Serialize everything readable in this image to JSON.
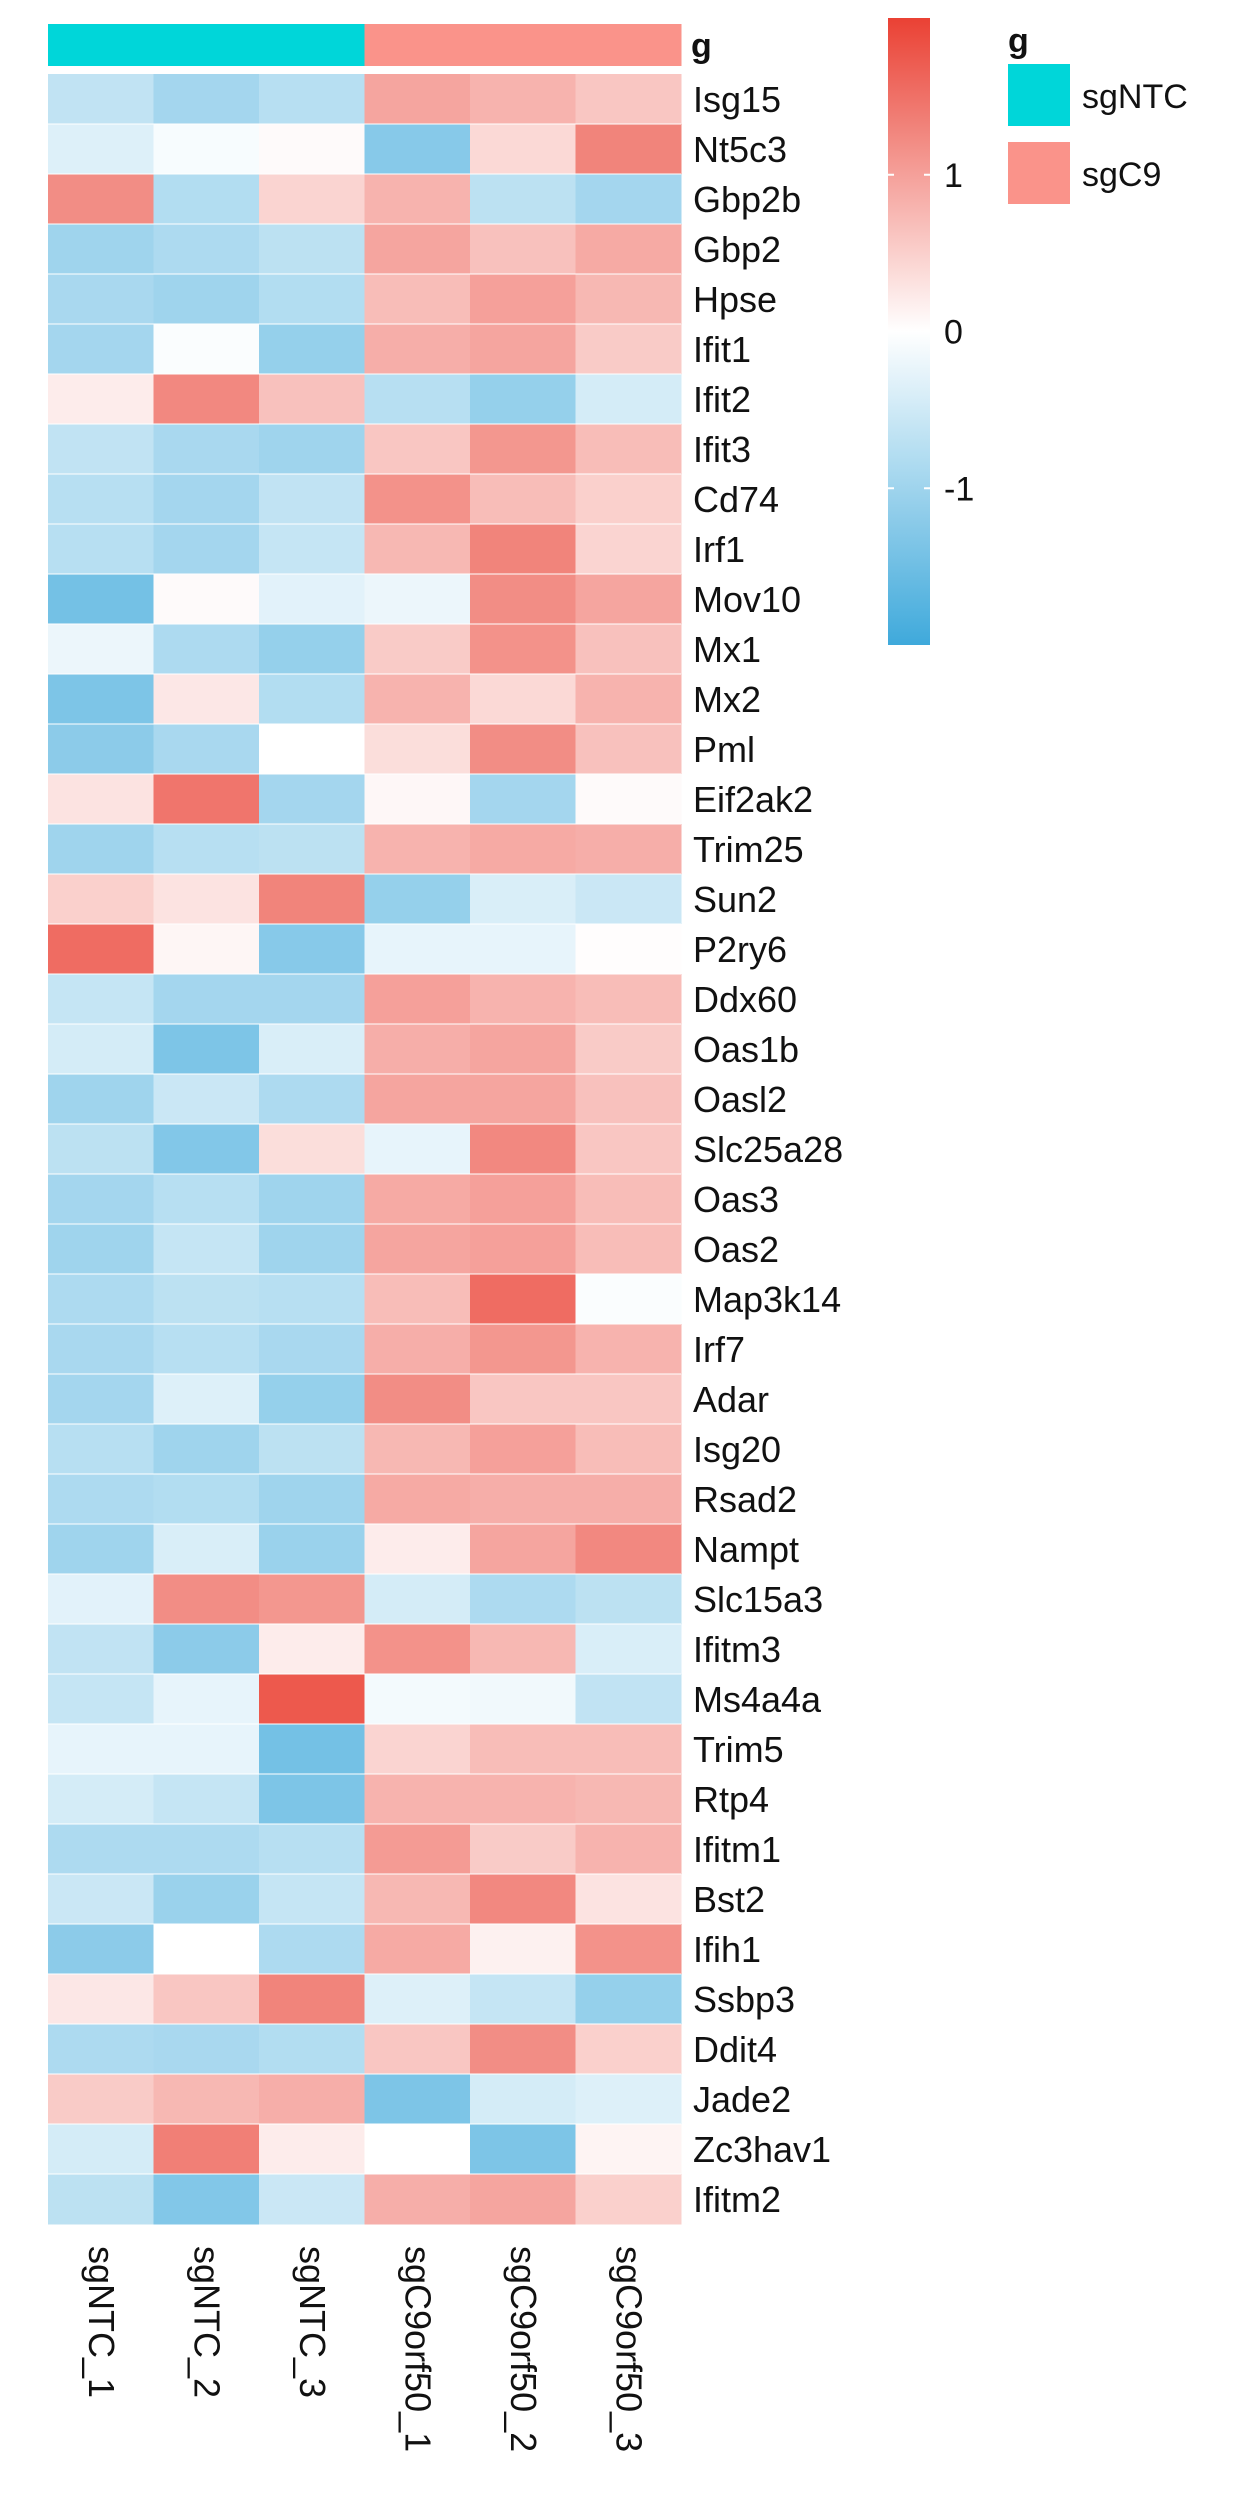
{
  "chart_data": {
    "type": "heatmap",
    "title": "",
    "annotation_label": "g",
    "columns": [
      "sgNTC_1",
      "sgNTC_2",
      "sgNTC_3",
      "sgC9orf50_1",
      "sgC9orf50_2",
      "sgC9orf50_3"
    ],
    "column_groups": [
      "sgNTC",
      "sgNTC",
      "sgNTC",
      "sgC9",
      "sgC9",
      "sgC9"
    ],
    "rows": [
      "Isg15",
      "Nt5c3",
      "Gbp2b",
      "Gbp2",
      "Hpse",
      "Ifit1",
      "Ifit2",
      "Ifit3",
      "Cd74",
      "Irf1",
      "Mov10",
      "Mx1",
      "Mx2",
      "Pml",
      "Eif2ak2",
      "Trim25",
      "Sun2",
      "P2ry6",
      "Ddx60",
      "Oas1b",
      "Oasl2",
      "Slc25a28",
      "Oas3",
      "Oas2",
      "Map3k14",
      "Irf7",
      "Adar",
      "Isg20",
      "Rsad2",
      "Nampt",
      "Slc15a3",
      "Ifitm3",
      "Ms4a4a",
      "Trim5",
      "Rtp4",
      "Ifitm1",
      "Bst2",
      "Ifih1",
      "Ssbp3",
      "Ddit4",
      "Jade2",
      "Zc3hav1",
      "Ifitm2"
    ],
    "values": [
      [
        -0.65,
        -0.95,
        -0.75,
        0.95,
        0.8,
        0.6
      ],
      [
        -0.35,
        -0.08,
        0.05,
        -1.25,
        0.4,
        1.3
      ],
      [
        1.2,
        -0.8,
        0.45,
        0.8,
        -0.7,
        -0.95
      ],
      [
        -1.0,
        -0.85,
        -0.7,
        0.95,
        0.65,
        0.9
      ],
      [
        -0.9,
        -1.0,
        -0.8,
        0.7,
        1.0,
        0.75
      ],
      [
        -0.95,
        -0.05,
        -1.1,
        0.85,
        0.95,
        0.55
      ],
      [
        0.2,
        1.25,
        0.65,
        -0.75,
        -1.1,
        -0.45
      ],
      [
        -0.65,
        -0.9,
        -1.0,
        0.6,
        1.1,
        0.7
      ],
      [
        -0.75,
        -0.95,
        -0.65,
        1.15,
        0.7,
        0.5
      ],
      [
        -0.75,
        -0.95,
        -0.6,
        0.75,
        1.3,
        0.45
      ],
      [
        -1.45,
        0.05,
        -0.3,
        -0.2,
        1.2,
        0.95
      ],
      [
        -0.2,
        -0.85,
        -1.1,
        0.55,
        1.15,
        0.65
      ],
      [
        -1.35,
        0.25,
        -0.8,
        0.8,
        0.4,
        0.8
      ],
      [
        -1.2,
        -0.9,
        0.0,
        0.35,
        1.2,
        0.65
      ],
      [
        0.3,
        1.45,
        -0.95,
        0.08,
        -0.95,
        0.05
      ],
      [
        -1.0,
        -0.75,
        -0.7,
        0.8,
        0.9,
        0.85
      ],
      [
        0.5,
        0.3,
        1.3,
        -1.1,
        -0.4,
        -0.55
      ],
      [
        1.55,
        0.1,
        -1.25,
        -0.25,
        -0.25,
        0.02
      ],
      [
        -0.6,
        -0.95,
        -0.95,
        1.0,
        0.8,
        0.7
      ],
      [
        -0.45,
        -1.35,
        -0.4,
        0.85,
        0.95,
        0.55
      ],
      [
        -1.0,
        -0.55,
        -0.85,
        0.95,
        0.95,
        0.65
      ],
      [
        -0.7,
        -1.3,
        0.35,
        -0.25,
        1.25,
        0.6
      ],
      [
        -0.95,
        -0.75,
        -1.0,
        0.9,
        1.0,
        0.7
      ],
      [
        -1.0,
        -0.6,
        -1.0,
        0.95,
        1.0,
        0.7
      ],
      [
        -0.85,
        -0.7,
        -0.75,
        0.7,
        1.55,
        -0.05
      ],
      [
        -0.9,
        -0.75,
        -0.9,
        0.85,
        1.1,
        0.8
      ],
      [
        -0.95,
        -0.35,
        -1.1,
        1.2,
        0.6,
        0.6
      ],
      [
        -0.75,
        -1.0,
        -0.7,
        0.75,
        1.0,
        0.7
      ],
      [
        -0.85,
        -0.8,
        -1.0,
        0.9,
        0.85,
        0.85
      ],
      [
        -1.0,
        -0.4,
        -1.05,
        0.2,
        0.95,
        1.25
      ],
      [
        -0.3,
        1.2,
        1.1,
        -0.45,
        -0.85,
        -0.7
      ],
      [
        -0.65,
        -1.2,
        0.2,
        1.15,
        0.75,
        -0.4
      ],
      [
        -0.6,
        -0.25,
        1.75,
        -0.12,
        -0.15,
        -0.65
      ],
      [
        -0.25,
        -0.25,
        -1.45,
        0.45,
        0.7,
        0.7
      ],
      [
        -0.45,
        -0.6,
        -1.35,
        0.8,
        0.8,
        0.75
      ],
      [
        -0.85,
        -0.85,
        -0.75,
        1.05,
        0.55,
        0.8
      ],
      [
        -0.55,
        -1.05,
        -0.6,
        0.75,
        1.25,
        0.3
      ],
      [
        -1.2,
        0.0,
        -0.85,
        0.9,
        0.15,
        1.15
      ],
      [
        0.25,
        0.6,
        1.3,
        -0.35,
        -0.6,
        -1.1
      ],
      [
        -0.85,
        -0.9,
        -0.8,
        0.6,
        1.2,
        0.5
      ],
      [
        0.55,
        0.75,
        0.85,
        -1.35,
        -0.45,
        -0.35
      ],
      [
        -0.45,
        1.35,
        0.2,
        0.0,
        -1.35,
        0.12
      ],
      [
        -0.7,
        -1.3,
        -0.55,
        0.85,
        0.95,
        0.5
      ]
    ],
    "color_scale": {
      "min": -2.0,
      "mid": 0,
      "max": 2.0,
      "low_color": "#3fa9db",
      "mid_color": "#ffffff",
      "high_color": "#ea4134",
      "ticks": [
        1,
        0,
        -1
      ],
      "tick_labels": [
        "1",
        "0",
        "-1"
      ]
    },
    "group_legend": {
      "title": "g",
      "entries": [
        {
          "label": "sgNTC",
          "color": "#00d6d9"
        },
        {
          "label": "sgC9",
          "color": "#fa938a"
        }
      ]
    }
  }
}
